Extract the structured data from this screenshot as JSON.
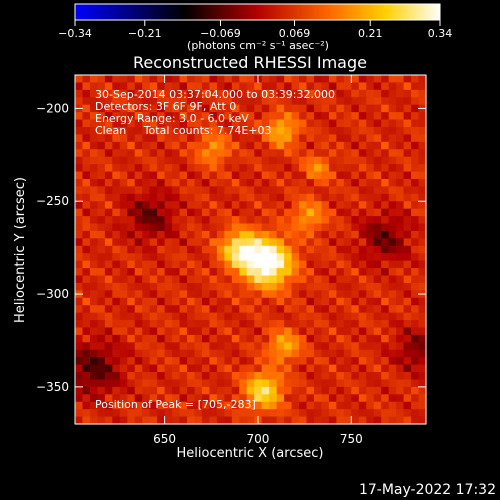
{
  "chart_data": {
    "type": "heatmap",
    "title": "Reconstructed RHESSI Image",
    "xlabel": "Heliocentric X (arcsec)",
    "ylabel": "Heliocentric Y (arcsec)",
    "xlim": [
      602,
      790
    ],
    "ylim": [
      -370,
      -182
    ],
    "xticks": [
      650,
      700,
      750
    ],
    "yticks": [
      -200,
      -250,
      -300,
      -350
    ],
    "colorbar": {
      "label": "(photons cm⁻² s⁻¹ asec⁻²)",
      "min": -0.34,
      "max": 0.34,
      "ticks": [
        "-0.34",
        "-0.21",
        "-0.069",
        "0.069",
        "0.21",
        "0.34"
      ],
      "colormap": [
        "#0000ff",
        "#000000",
        "#b40000",
        "#ff6a00",
        "#ffd000",
        "#ffffff"
      ]
    },
    "annotations": [
      "30-Sep-2014 03:37:04.000 to 03:39:32.000",
      "Detectors: 3F 6F 9F, Att 0",
      "Energy Range: 3.0 - 6.0 keV",
      "Clean     Total counts: 7.74E+03",
      "Position of Peak = [705,-283]"
    ],
    "peak": {
      "x": 705,
      "y": -283
    },
    "sources": [
      {
        "x": 705,
        "y": -283,
        "amp": 0.34,
        "sigma": 9
      },
      {
        "x": 690,
        "y": -276,
        "amp": 0.22,
        "sigma": 7
      },
      {
        "x": 703,
        "y": -352,
        "amp": 0.22,
        "sigma": 7
      },
      {
        "x": 713,
        "y": -212,
        "amp": 0.16,
        "sigma": 6
      },
      {
        "x": 714,
        "y": -328,
        "amp": 0.15,
        "sigma": 6
      },
      {
        "x": 676,
        "y": -222,
        "amp": 0.12,
        "sigma": 6
      },
      {
        "x": 727,
        "y": -258,
        "amp": 0.13,
        "sigma": 6
      },
      {
        "x": 732,
        "y": -232,
        "amp": 0.11,
        "sigma": 5
      },
      {
        "x": 642,
        "y": -258,
        "amp": -0.1,
        "sigma": 9
      },
      {
        "x": 768,
        "y": -270,
        "amp": -0.1,
        "sigma": 9
      },
      {
        "x": 612,
        "y": -340,
        "amp": -0.12,
        "sigma": 10
      },
      {
        "x": 785,
        "y": -330,
        "amp": -0.09,
        "sigma": 8
      }
    ]
  },
  "footer": {
    "timestamp": "17-May-2022 17:32"
  }
}
